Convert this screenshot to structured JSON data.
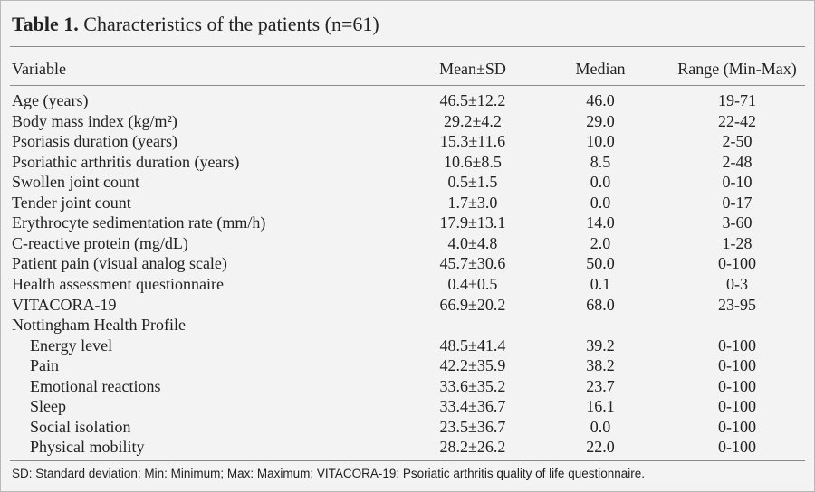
{
  "title": {
    "label": "Table 1.",
    "text": "Characteristics of the patients (n=61)"
  },
  "table": {
    "columns": [
      "Variable",
      "Mean±SD",
      "Median",
      "Range (Min-Max)"
    ],
    "rows": [
      [
        "Age (years)",
        "46.5±12.2",
        "46.0",
        "19-71"
      ],
      [
        "Body mass index (kg/m²)",
        "29.2±4.2",
        "29.0",
        "22-42"
      ],
      [
        "Psoriasis duration (years)",
        "15.3±11.6",
        "10.0",
        "2-50"
      ],
      [
        "Psoriathic arthritis duration (years)",
        "10.6±8.5",
        "8.5",
        "2-48"
      ],
      [
        "Swollen joint count",
        "0.5±1.5",
        "0.0",
        "0-10"
      ],
      [
        "Tender joint count",
        "1.7±3.0",
        "0.0",
        "0-17"
      ],
      [
        "Erythrocyte sedimentation rate (mm/h)",
        "17.9±13.1",
        "14.0",
        "3-60"
      ],
      [
        "C-reactive protein (mg/dL)",
        "4.0±4.8",
        "2.0",
        "1-28"
      ],
      [
        "Patient pain (visual analog scale)",
        "45.7±30.6",
        "50.0",
        "0-100"
      ],
      [
        "Health assessment questionnaire",
        "0.4±0.5",
        "0.1",
        "0-3"
      ],
      [
        "VITACORA-19",
        "66.9±20.2",
        "68.0",
        "23-95"
      ]
    ],
    "group": {
      "title": "Nottingham Health Profile",
      "rows": [
        [
          "Energy level",
          "48.5±41.4",
          "39.2",
          "0-100"
        ],
        [
          "Pain",
          "42.2±35.9",
          "38.2",
          "0-100"
        ],
        [
          "Emotional reactions",
          "33.6±35.2",
          "23.7",
          "0-100"
        ],
        [
          "Sleep",
          "33.4±36.7",
          "16.1",
          "0-100"
        ],
        [
          "Social isolation",
          "23.5±36.7",
          "0.0",
          "0-100"
        ],
        [
          "Physical mobility",
          "28.2±26.2",
          "22.0",
          "0-100"
        ]
      ]
    }
  },
  "footnote": "SD: Standard deviation; Min: Minimum; Max: Maximum; VITACORA-19: Psoriatic arthritis quality of life questionnaire."
}
